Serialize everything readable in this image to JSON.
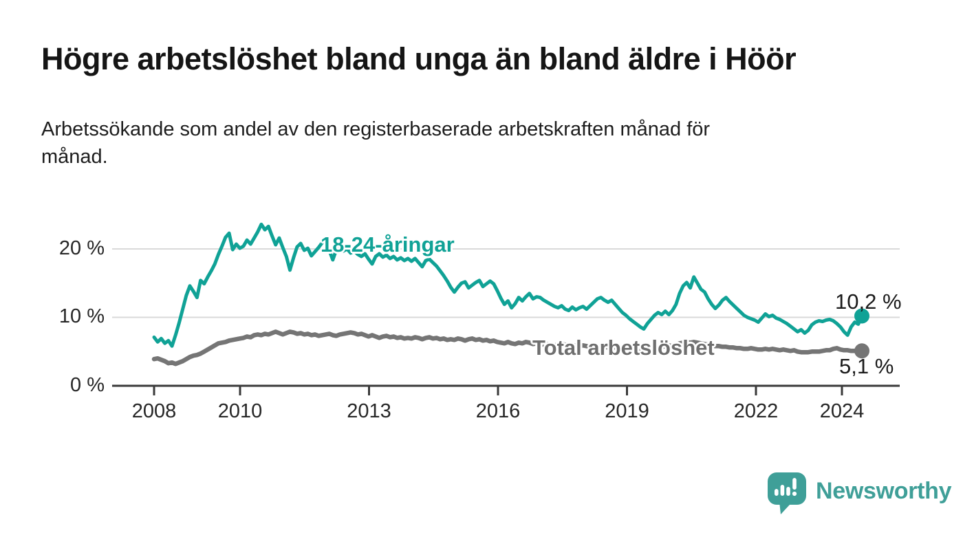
{
  "title": "Högre arbetslöshet bland unga än bland äldre i Höör",
  "subtitle": {
    "line1": "Arbetssökande som andel av den registerbaserade arbetskraften månad för",
    "line2": "månad."
  },
  "axis": {
    "y_labels": [
      "20 %",
      "10 %",
      "0 %"
    ],
    "x_labels": [
      "2008",
      "2010",
      "2013",
      "2016",
      "2019",
      "2022",
      "2024"
    ]
  },
  "branding": {
    "name": "Newsworthy",
    "icon": "newsworthy-speech-bubble-bar-chart-icon",
    "color": "#3f9f98"
  },
  "colors": {
    "young_line": "#10a296",
    "total_line": "#757575",
    "total_label": "#6f6f6f",
    "gridline": "#d9d9d9",
    "axis_line": "#3a3a3a",
    "value_label": "#1a1a1a"
  },
  "chart_data": {
    "type": "line",
    "title": "Högre arbetslöshet bland unga än bland äldre i Höör",
    "subtitle": "Arbetssökande som andel av den registerbaserade arbetskraften månad för månad.",
    "unit": "percent",
    "frequency": "monthly",
    "x_start": "2008-01",
    "x_end": "2024-07",
    "xlabel": "",
    "ylabel": "",
    "ylim": [
      0,
      24.5
    ],
    "grid": "horizontal",
    "y_gridlines": [
      10,
      20
    ],
    "x_tick_years": [
      2008,
      2010,
      2013,
      2016,
      2019,
      2022,
      2024
    ],
    "legend_position": "inline-labels",
    "series": [
      {
        "name": "18-24-åringar",
        "color": "#10a296",
        "last_value": 10.2,
        "end_label": "10,2 %",
        "values": [
          7.1,
          6.4,
          6.9,
          6.2,
          6.6,
          5.8,
          7.4,
          9.2,
          11.2,
          13.2,
          14.6,
          13.8,
          12.9,
          15.4,
          14.9,
          15.9,
          16.8,
          17.8,
          19.2,
          20.4,
          21.7,
          22.3,
          19.9,
          20.7,
          20.1,
          20.4,
          21.3,
          20.7,
          21.6,
          22.5,
          23.6,
          22.8,
          23.3,
          21.9,
          20.6,
          21.6,
          20.2,
          18.9,
          16.9,
          18.7,
          20.3,
          20.8,
          19.8,
          20.1,
          19.0,
          19.6,
          20.2,
          20.9,
          21.3,
          19.8,
          18.4,
          19.9,
          20.3,
          19.7,
          20.0,
          19.4,
          19.7,
          19.2,
          18.9,
          19.3,
          18.5,
          17.8,
          18.9,
          19.3,
          18.8,
          19.1,
          18.6,
          18.9,
          18.4,
          18.7,
          18.3,
          18.6,
          18.2,
          18.6,
          18.0,
          17.4,
          18.3,
          18.5,
          18.0,
          17.5,
          16.8,
          16.1,
          15.3,
          14.4,
          13.7,
          14.4,
          15.0,
          15.2,
          14.3,
          14.7,
          15.1,
          15.4,
          14.5,
          14.9,
          15.3,
          14.9,
          13.9,
          12.8,
          11.9,
          12.4,
          11.4,
          12.0,
          12.9,
          12.4,
          13.0,
          13.5,
          12.7,
          13.0,
          12.9,
          12.5,
          12.2,
          11.9,
          11.6,
          11.4,
          11.7,
          11.2,
          11.0,
          11.5,
          11.1,
          11.4,
          11.6,
          11.2,
          11.7,
          12.2,
          12.7,
          12.9,
          12.5,
          12.2,
          12.5,
          11.9,
          11.3,
          10.7,
          10.3,
          9.8,
          9.4,
          9.0,
          8.6,
          8.3,
          9.1,
          9.7,
          10.3,
          10.7,
          10.4,
          10.9,
          10.4,
          11.0,
          11.9,
          13.5,
          14.6,
          15.1,
          14.3,
          15.9,
          15.0,
          14.1,
          13.7,
          12.7,
          11.9,
          11.3,
          11.8,
          12.5,
          12.9,
          12.3,
          11.8,
          11.3,
          10.8,
          10.3,
          10.0,
          9.8,
          9.6,
          9.3,
          9.9,
          10.5,
          10.1,
          10.3,
          9.9,
          9.7,
          9.4,
          9.1,
          8.7,
          8.3,
          7.9,
          8.2,
          7.7,
          8.1,
          8.9,
          9.3,
          9.5,
          9.4,
          9.6,
          9.7,
          9.5,
          9.1,
          8.6,
          7.9,
          7.4,
          8.6,
          9.3,
          9.0,
          10.2
        ]
      },
      {
        "name": "Total arbetslöshet",
        "color": "#757575",
        "last_value": 5.1,
        "end_label": "5,1 %",
        "values": [
          3.9,
          4.0,
          3.8,
          3.6,
          3.3,
          3.4,
          3.2,
          3.4,
          3.6,
          3.9,
          4.2,
          4.4,
          4.5,
          4.7,
          5.0,
          5.3,
          5.6,
          5.9,
          6.2,
          6.3,
          6.4,
          6.6,
          6.7,
          6.8,
          6.9,
          7.0,
          7.2,
          7.1,
          7.4,
          7.5,
          7.4,
          7.6,
          7.5,
          7.7,
          7.9,
          7.7,
          7.5,
          7.7,
          7.9,
          7.8,
          7.6,
          7.7,
          7.5,
          7.6,
          7.4,
          7.5,
          7.3,
          7.4,
          7.5,
          7.6,
          7.4,
          7.3,
          7.5,
          7.6,
          7.7,
          7.8,
          7.7,
          7.5,
          7.6,
          7.4,
          7.2,
          7.4,
          7.2,
          7.0,
          7.2,
          7.3,
          7.1,
          7.2,
          7.0,
          7.1,
          6.9,
          7.0,
          6.9,
          7.1,
          7.0,
          6.8,
          7.0,
          7.1,
          6.9,
          7.0,
          6.8,
          6.9,
          6.7,
          6.8,
          6.7,
          6.9,
          6.8,
          6.6,
          6.8,
          6.9,
          6.7,
          6.8,
          6.6,
          6.7,
          6.5,
          6.6,
          6.4,
          6.3,
          6.2,
          6.4,
          6.2,
          6.1,
          6.3,
          6.2,
          6.4,
          6.3,
          6.1,
          6.2,
          6.1,
          6.0,
          6.1,
          6.0,
          5.9,
          6.0,
          6.1,
          6.0,
          5.9,
          5.8,
          5.9,
          5.8,
          5.9,
          5.8,
          5.7,
          5.8,
          5.7,
          5.8,
          5.7,
          5.6,
          5.7,
          5.6,
          5.5,
          5.6,
          5.5,
          5.4,
          5.5,
          5.4,
          5.3,
          5.4,
          5.5,
          5.4,
          5.5,
          5.6,
          5.7,
          5.8,
          5.9,
          5.8,
          6.0,
          6.2,
          6.3,
          6.4,
          6.3,
          6.4,
          6.3,
          6.2,
          6.1,
          6.0,
          5.9,
          5.8,
          5.8,
          5.7,
          5.7,
          5.6,
          5.6,
          5.5,
          5.5,
          5.4,
          5.4,
          5.5,
          5.4,
          5.3,
          5.3,
          5.4,
          5.3,
          5.4,
          5.3,
          5.2,
          5.3,
          5.2,
          5.1,
          5.2,
          5.0,
          4.9,
          4.9,
          4.9,
          5.0,
          5.0,
          5.0,
          5.1,
          5.2,
          5.2,
          5.4,
          5.5,
          5.3,
          5.2,
          5.2,
          5.1,
          5.1,
          5.0,
          5.1
        ]
      }
    ]
  }
}
